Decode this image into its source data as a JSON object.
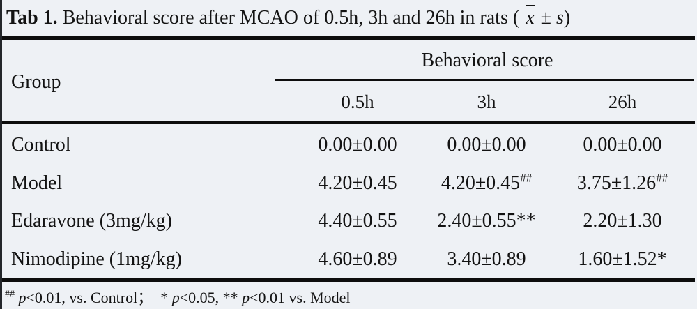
{
  "colors": {
    "background": "#eef1f5",
    "rule": "#0d0d0d",
    "text": "#131313"
  },
  "caption": {
    "label": "Tab 1.",
    "body": " Behavioral score after MCAO of 0.5h, 3h and 26h in rats ( ",
    "xbar_symbol": "x",
    "plus_minus": " ± ",
    "s_symbol": "s",
    "close_paren": ")"
  },
  "table": {
    "group_header": "Group",
    "span_header": "Behavioral score",
    "columns": [
      "0.5h",
      "3h",
      "26h"
    ],
    "rows": [
      {
        "group": "Control",
        "values": [
          {
            "v": "0.00±0.00",
            "sup": ""
          },
          {
            "v": "0.00±0.00",
            "sup": ""
          },
          {
            "v": "0.00±0.00",
            "sup": ""
          }
        ]
      },
      {
        "group": "Model",
        "values": [
          {
            "v": "4.20±0.45",
            "sup": ""
          },
          {
            "v": "4.20±0.45",
            "sup": "##"
          },
          {
            "v": "3.75±1.26",
            "sup": "##"
          }
        ]
      },
      {
        "group": "Edaravone (3mg/kg)",
        "values": [
          {
            "v": "4.40±0.55",
            "sup": ""
          },
          {
            "v": "2.40±0.55**",
            "sup": ""
          },
          {
            "v": "2.20±1.30",
            "sup": ""
          }
        ]
      },
      {
        "group": "Nimodipine (1mg/kg)",
        "values": [
          {
            "v": "4.60±0.89",
            "sup": ""
          },
          {
            "v": "3.40±0.89",
            "sup": ""
          },
          {
            "v": "1.60±1.52*",
            "sup": ""
          }
        ]
      }
    ]
  },
  "footnote": {
    "sup": "##",
    "sp1": " ",
    "p1": "p",
    "seg1": "<0.01, vs. Control；  * ",
    "p2": "p",
    "seg2": "<0.05, ** ",
    "p3": "p",
    "seg3": "<0.01 vs. Model"
  }
}
